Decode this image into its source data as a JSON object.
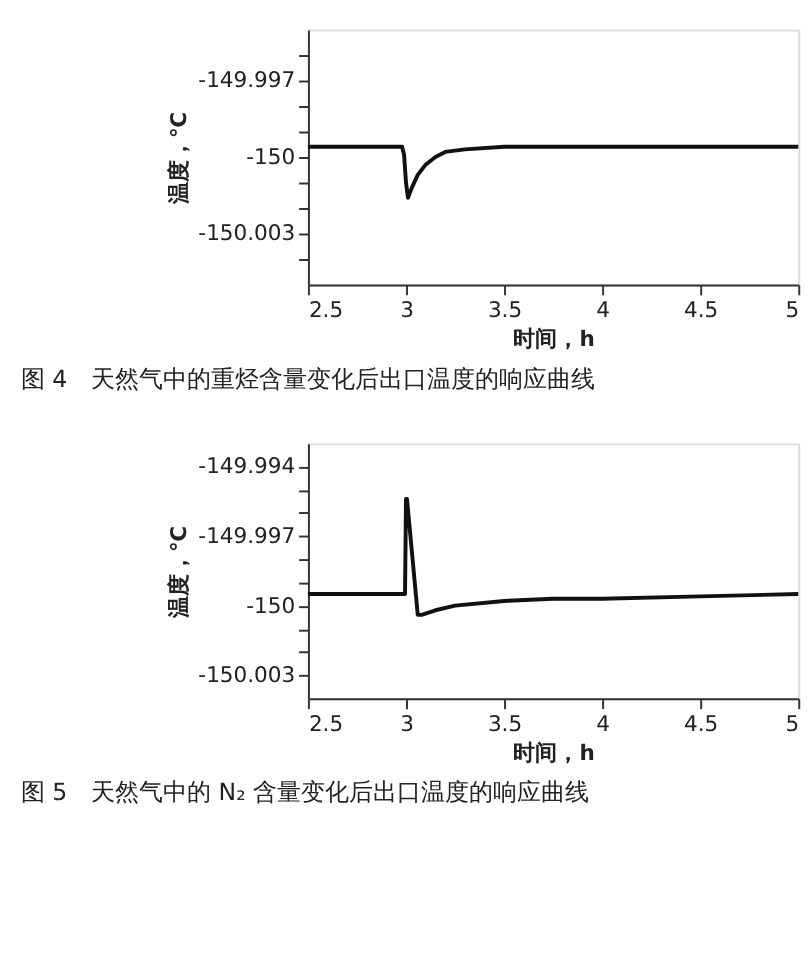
{
  "chart_data": [
    {
      "type": "line",
      "xlabel": "时间，h",
      "ylabel": "温度，℃",
      "annotations": [
        "图 4　天然气中的重烃含量变化后出口温度的响应曲线"
      ],
      "series": [
        {
          "color": "#111111",
          "x": [
            2.5,
            2.98,
            2.99,
            3.0,
            3.01,
            3.03,
            3.06,
            3.1,
            3.15,
            3.2,
            3.3,
            3.5,
            5
          ],
          "values": [
            -149.9996,
            -149.9996,
            -149.9999,
            -150.001,
            -150.0016,
            -150.0012,
            -150.0007,
            -150.0003,
            -150.0,
            -149.9998,
            -149.9997,
            -149.9996,
            -149.9996
          ]
        }
      ],
      "xlim": [
        2.5,
        5
      ],
      "xticks": [
        2.5,
        3,
        3.5,
        4,
        4.5,
        5
      ],
      "ylim": [
        -150.005,
        -149.995
      ],
      "yticks": [
        {
          "value": -149.996,
          "label": null
        },
        -149.997,
        {
          "value": -149.998,
          "label": null
        },
        {
          "value": -149.999,
          "label": null
        },
        -150,
        {
          "value": -150.001,
          "label": null
        },
        {
          "value": -150.002,
          "label": null
        },
        -150.003,
        {
          "value": -150.004,
          "label": null
        }
      ],
      "grid": false,
      "marker": "none",
      "line_style": "solid"
    },
    {
      "type": "line",
      "xlabel": "时间，h",
      "ylabel": "温度，℃",
      "annotations": [
        "图 5　天然气中的 N₂ 含量变化后出口温度的响应曲线"
      ],
      "series": [
        {
          "color": "#111111",
          "x": [
            2.5,
            2.995,
            3.0,
            3.005,
            3.06,
            3.08,
            3.15,
            3.25,
            3.5,
            3.75,
            4,
            4.5,
            5
          ],
          "values": [
            -149.9995,
            -149.9995,
            -149.9954,
            -149.9954,
            -150.0004,
            -150.0004,
            -150.0002,
            -150.0,
            -149.9998,
            -149.9997,
            -149.9997,
            -149.9996,
            -149.9995
          ]
        }
      ],
      "xlim": [
        2.5,
        5
      ],
      "xticks": [
        2.5,
        3,
        3.5,
        4,
        4.5,
        5
      ],
      "ylim": [
        -150.004,
        -149.993
      ],
      "yticks": [
        -149.994,
        {
          "value": -149.995,
          "label": null
        },
        {
          "value": -149.996,
          "label": null
        },
        -149.997,
        {
          "value": -149.998,
          "label": null
        },
        {
          "value": -149.999,
          "label": null
        },
        -150,
        {
          "value": -150.001,
          "label": null
        },
        {
          "value": -150.002,
          "label": null
        },
        -150.003
      ],
      "grid": false,
      "marker": "none",
      "line_style": "solid"
    }
  ]
}
